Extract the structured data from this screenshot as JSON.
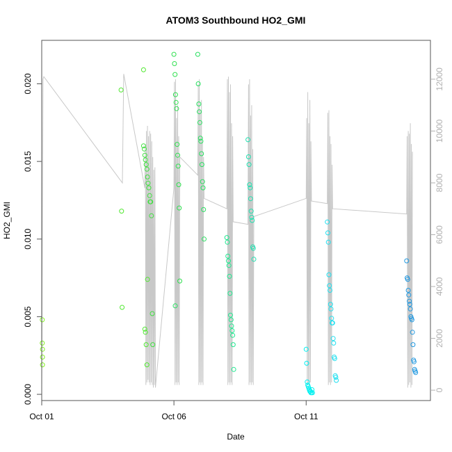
{
  "chart_data": {
    "type": "scatter",
    "title": "ATOM3 Southbound HO2_GMI",
    "xlabel": "Date",
    "ylabel": "HO2_GMI",
    "xlim_days": [
      0.0,
      14.7
    ],
    "ylim": [
      -0.0004,
      0.0228
    ],
    "y2lim": [
      -400,
      13500
    ],
    "x_ticks": [
      {
        "label": "Oct 01",
        "day": 0
      },
      {
        "label": "Oct 06",
        "day": 5
      },
      {
        "label": "Oct 11",
        "day": 10
      }
    ],
    "y_ticks": [
      0.0,
      0.005,
      0.01,
      0.015,
      0.02
    ],
    "y_tick_labels": [
      "0.000",
      "0.005",
      "0.010",
      "0.015",
      "0.020"
    ],
    "y2_ticks": [
      0,
      2000,
      4000,
      6000,
      8000,
      10000,
      12000
    ],
    "y2_tick_labels": [
      "0",
      "2000",
      "4000",
      "6000",
      "8000",
      "10000",
      "12000"
    ],
    "colors": {
      "altitude_line": "#c8c8c8",
      "right_axis": "#b0b0b0",
      "point_group_1": "#80f020",
      "point_group_2": "#40e040",
      "point_group_3": "#10f080",
      "point_group_4": "#20e0c0",
      "point_group_5": "#00e8f0",
      "point_group_6": "#2098e0"
    },
    "series": [
      {
        "color": "#80f020",
        "x": [
          0.02,
          0.02,
          0.03,
          0.03,
          0.03
        ],
        "y": [
          0.0048,
          0.0033,
          0.0029,
          0.0024,
          0.0019
        ]
      },
      {
        "color": "#50e830",
        "x": [
          3.0,
          3.02,
          3.04,
          3.85,
          3.9,
          3.92,
          3.95,
          3.98,
          4.0
        ],
        "y": [
          0.0196,
          0.0118,
          0.0056,
          0.0209,
          0.0042,
          0.004,
          0.0032,
          0.0019,
          0.0074
        ]
      },
      {
        "color": "#40e040",
        "x": [
          3.85,
          3.88,
          3.9,
          3.92,
          3.95,
          3.98,
          4.0,
          4.02,
          4.05,
          4.08,
          4.1,
          4.12,
          4.15,
          4.18,
          4.2
        ],
        "y": [
          0.016,
          0.0158,
          0.0154,
          0.0151,
          0.0148,
          0.0145,
          0.014,
          0.0136,
          0.0133,
          0.0128,
          0.0124,
          0.0124,
          0.0115,
          0.0052,
          0.0032
        ]
      },
      {
        "color": "#30e050",
        "x": [
          5.0,
          5.02,
          5.04,
          5.06,
          5.08,
          5.1,
          5.12,
          5.14,
          5.16,
          5.18,
          5.2,
          5.22
        ],
        "y": [
          0.0219,
          0.0213,
          0.0206,
          0.0193,
          0.0188,
          0.0184,
          0.0161,
          0.0154,
          0.0147,
          0.0135,
          0.012,
          0.0073
        ]
      },
      {
        "color": "#28e060",
        "x": [
          5.05,
          5.9,
          5.92,
          5.94,
          5.96,
          5.98,
          6.0,
          6.02,
          6.04,
          6.06,
          6.08,
          6.1,
          6.12,
          6.14
        ],
        "y": [
          0.0057,
          0.0219,
          0.02,
          0.0187,
          0.0182,
          0.0175,
          0.0165,
          0.0163,
          0.0155,
          0.0148,
          0.0137,
          0.0133,
          0.0119,
          0.01
        ]
      },
      {
        "color": "#20e890",
        "x": [
          7.0,
          7.02,
          7.04,
          7.06,
          7.08,
          7.1,
          7.12,
          7.14,
          7.16,
          7.18,
          7.2,
          7.22,
          7.24,
          7.26
        ],
        "y": [
          0.0101,
          0.0098,
          0.0089,
          0.0086,
          0.0083,
          0.0076,
          0.0065,
          0.0051,
          0.0048,
          0.0044,
          0.0041,
          0.0038,
          0.0032,
          0.0016
        ]
      },
      {
        "color": "#20e0b0",
        "x": [
          7.8,
          7.82,
          7.84,
          7.86,
          7.88,
          7.9,
          7.92,
          7.94,
          7.96,
          7.98,
          8.0,
          8.02
        ],
        "y": [
          0.0164,
          0.0153,
          0.0148,
          0.0135,
          0.0133,
          0.0126,
          0.0118,
          0.0114,
          0.0112,
          0.0095,
          0.0094,
          0.0087
        ]
      },
      {
        "color": "#00f0f0",
        "x": [
          10.0,
          10.02,
          10.04,
          10.06,
          10.08,
          10.1,
          10.12,
          10.14,
          10.16,
          10.18,
          10.2,
          10.22,
          10.24
        ],
        "y": [
          0.0029,
          0.002,
          0.0008,
          0.0006,
          0.0005,
          0.0004,
          0.0003,
          0.0002,
          0.0002,
          0.0001,
          0.0001,
          0.0003,
          0.0001
        ]
      },
      {
        "color": "#20e0f0",
        "x": [
          10.8,
          10.82,
          10.84,
          10.86,
          10.88,
          10.9,
          10.92,
          10.94,
          10.96,
          10.98,
          11.0,
          11.02,
          11.04,
          11.06,
          11.08,
          11.1,
          11.12,
          11.14
        ],
        "y": [
          0.0111,
          0.0104,
          0.0098,
          0.0077,
          0.007,
          0.0067,
          0.0058,
          0.0055,
          0.0049,
          0.0046,
          0.0046,
          0.0036,
          0.0033,
          0.0024,
          0.0023,
          0.0012,
          0.0011,
          0.0009
        ]
      },
      {
        "color": "#2098e0",
        "x": [
          13.8,
          13.82,
          13.84,
          13.86,
          13.88,
          13.9,
          13.92,
          13.94,
          13.96,
          13.98,
          14.0,
          14.02,
          14.04,
          14.06,
          14.08,
          14.1,
          14.12,
          14.14
        ],
        "y": [
          0.0086,
          0.0075,
          0.0074,
          0.0067,
          0.0064,
          0.006,
          0.0058,
          0.0055,
          0.005,
          0.0049,
          0.0048,
          0.004,
          0.0032,
          0.0022,
          0.0021,
          0.0016,
          0.0015,
          0.0014
        ]
      }
    ],
    "altitude_trace": {
      "color": "#c8c8c8",
      "x": [
        0.0,
        0.05,
        0.08,
        3.05,
        3.1,
        3.9,
        3.92,
        3.94,
        3.96,
        3.98,
        4.0,
        4.02,
        4.04,
        4.06,
        4.08,
        4.1,
        4.12,
        4.14,
        4.16,
        4.18,
        4.2,
        4.22,
        4.24,
        4.26,
        4.28,
        4.3,
        5.0,
        5.02,
        5.04,
        5.06,
        5.08,
        5.1,
        5.12,
        5.14,
        5.16,
        5.18,
        5.2,
        5.22,
        5.9,
        5.92,
        5.94,
        5.96,
        5.98,
        6.0,
        6.02,
        6.04,
        6.06,
        6.08,
        6.1,
        6.12,
        6.14,
        7.0,
        7.02,
        7.04,
        7.06,
        7.08,
        7.1,
        7.12,
        7.14,
        7.16,
        7.18,
        7.2,
        7.22,
        7.24,
        7.8,
        7.82,
        7.84,
        7.86,
        7.88,
        7.9,
        7.92,
        7.94,
        7.96,
        7.98,
        8.0,
        8.02,
        10.0,
        10.02,
        10.04,
        10.06,
        10.08,
        10.1,
        10.12,
        10.14,
        10.16,
        10.18,
        10.2,
        10.8,
        10.82,
        10.84,
        10.86,
        10.88,
        10.9,
        10.92,
        10.94,
        10.96,
        10.98,
        11.0,
        13.8,
        13.82,
        13.84,
        13.86,
        13.88,
        13.9,
        13.92,
        13.94,
        13.96,
        13.98,
        14.0,
        14.02
      ],
      "y": [
        100,
        12000,
        12100,
        8000,
        12200,
        7800,
        9500,
        200,
        10000,
        300,
        10200,
        400,
        9800,
        300,
        10000,
        200,
        9900,
        300,
        9600,
        200,
        9000,
        100,
        8500,
        200,
        8600,
        100,
        7800,
        11900,
        200,
        12000,
        300,
        10500,
        200,
        11000,
        300,
        9800,
        200,
        9000,
        8300,
        11800,
        200,
        12000,
        300,
        10800,
        200,
        11200,
        300,
        9600,
        200,
        9000,
        7400,
        7000,
        12000,
        200,
        12100,
        300,
        11500,
        200,
        11800,
        300,
        10300,
        200,
        9800,
        6500,
        6400,
        11800,
        200,
        12000,
        300,
        10600,
        200,
        11000,
        300,
        9300,
        200,
        6700,
        7400,
        10500,
        200,
        11500,
        300,
        10300,
        200,
        11200,
        300,
        9600,
        7300,
        7200,
        10700,
        200,
        10800,
        300,
        9800,
        200,
        9500,
        300,
        8700,
        7000,
        6800,
        9800,
        100,
        10000,
        200,
        9900,
        300,
        10300,
        100,
        9500,
        200,
        9200
      ]
    }
  }
}
